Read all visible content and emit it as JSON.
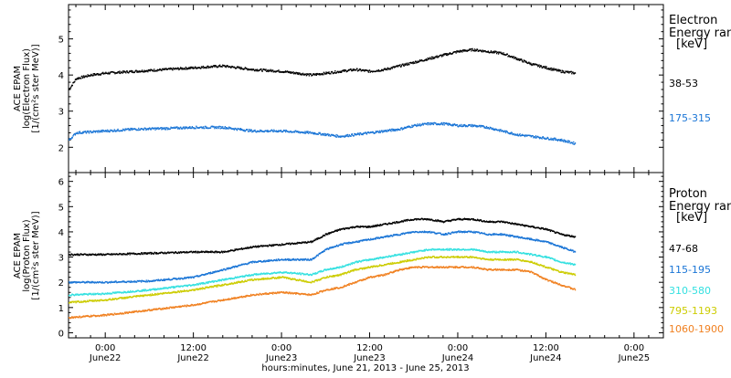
{
  "x_axis": {
    "label": "hours:minutes, June 21, 2013 - June 25, 2013",
    "ticks": [
      {
        "h": 24,
        "time": "0:00",
        "day": "June22"
      },
      {
        "h": 36,
        "time": "12:00",
        "day": "June22"
      },
      {
        "h": 48,
        "time": "0:00",
        "day": "June23"
      },
      {
        "h": 60,
        "time": "12:00",
        "day": "June23"
      },
      {
        "h": 72,
        "time": "0:00",
        "day": "June24"
      },
      {
        "h": 84,
        "time": "12:00",
        "day": "June24"
      },
      {
        "h": 96,
        "time": "0:00",
        "day": "June25"
      }
    ],
    "xlim": [
      19,
      100
    ]
  },
  "chart_data": [
    {
      "type": "scatter",
      "ylabel_lines": [
        "ACE EPAM",
        "log(Electron Flux)",
        "[1/(cm²s ster MeV)]"
      ],
      "ylim": [
        1.3,
        5.95
      ],
      "yticks": [
        2,
        3,
        4,
        5
      ],
      "legend_title": [
        "Electron",
        "Energy ran",
        "[keV]"
      ],
      "series": [
        {
          "name": "38-53",
          "color": "#000000",
          "x": [
            19,
            20,
            22,
            24,
            28,
            32,
            36,
            40,
            44,
            48,
            50,
            52,
            54,
            56,
            58,
            60,
            62,
            64,
            66,
            68,
            70,
            72,
            74,
            76,
            78,
            80,
            82,
            84,
            86,
            88
          ],
          "y": [
            3.6,
            3.9,
            4.0,
            4.05,
            4.1,
            4.15,
            4.2,
            4.25,
            4.15,
            4.1,
            4.05,
            4.0,
            4.05,
            4.1,
            4.15,
            4.1,
            4.15,
            4.25,
            4.35,
            4.45,
            4.55,
            4.65,
            4.7,
            4.65,
            4.6,
            4.45,
            4.3,
            4.2,
            4.1,
            4.05
          ]
        },
        {
          "name": "175-315",
          "color": "#1a75d6",
          "x": [
            19,
            20,
            24,
            28,
            32,
            36,
            40,
            44,
            48,
            52,
            54,
            56,
            58,
            60,
            62,
            64,
            66,
            68,
            70,
            72,
            74,
            76,
            78,
            80,
            82,
            84,
            86,
            88
          ],
          "y": [
            2.2,
            2.4,
            2.45,
            2.5,
            2.52,
            2.55,
            2.55,
            2.45,
            2.45,
            2.4,
            2.35,
            2.3,
            2.35,
            2.4,
            2.45,
            2.5,
            2.6,
            2.65,
            2.65,
            2.6,
            2.6,
            2.55,
            2.45,
            2.35,
            2.3,
            2.25,
            2.2,
            2.1
          ]
        }
      ]
    },
    {
      "type": "scatter",
      "ylabel_lines": [
        "ACE EPAM",
        "log(Proton Flux)",
        "[1/(cm²s ster MeV)]"
      ],
      "ylim": [
        -0.2,
        6.35
      ],
      "yticks": [
        0,
        1,
        2,
        3,
        4,
        5,
        6
      ],
      "legend_title": [
        "Proton",
        "Energy ran",
        "[keV]"
      ],
      "series": [
        {
          "name": "47-68",
          "color": "#000000",
          "x": [
            19,
            24,
            30,
            36,
            40,
            44,
            48,
            52,
            54,
            56,
            58,
            60,
            62,
            64,
            66,
            68,
            70,
            72,
            74,
            76,
            78,
            80,
            82,
            84,
            86,
            88
          ],
          "y": [
            3.1,
            3.1,
            3.15,
            3.2,
            3.2,
            3.4,
            3.5,
            3.6,
            3.9,
            4.1,
            4.2,
            4.2,
            4.3,
            4.4,
            4.5,
            4.5,
            4.4,
            4.5,
            4.5,
            4.4,
            4.4,
            4.3,
            4.2,
            4.1,
            3.9,
            3.8
          ]
        },
        {
          "name": "115-195",
          "color": "#1a75d6",
          "x": [
            19,
            24,
            30,
            36,
            40,
            44,
            48,
            52,
            54,
            56,
            58,
            60,
            62,
            64,
            66,
            68,
            70,
            72,
            74,
            76,
            78,
            80,
            82,
            84,
            86,
            88
          ],
          "y": [
            2.0,
            2.0,
            2.05,
            2.2,
            2.5,
            2.8,
            2.9,
            2.9,
            3.3,
            3.5,
            3.6,
            3.7,
            3.8,
            3.9,
            4.0,
            4.0,
            3.9,
            4.0,
            4.0,
            3.9,
            3.9,
            3.8,
            3.7,
            3.6,
            3.4,
            3.2
          ]
        },
        {
          "name": "310-580",
          "color": "#33e0e0",
          "x": [
            19,
            24,
            30,
            36,
            40,
            44,
            48,
            52,
            54,
            56,
            58,
            60,
            62,
            64,
            66,
            68,
            70,
            72,
            74,
            76,
            78,
            80,
            82,
            84,
            86,
            88
          ],
          "y": [
            1.5,
            1.55,
            1.7,
            1.9,
            2.1,
            2.3,
            2.4,
            2.3,
            2.5,
            2.6,
            2.8,
            2.9,
            3.0,
            3.1,
            3.2,
            3.3,
            3.3,
            3.3,
            3.3,
            3.2,
            3.2,
            3.2,
            3.1,
            3.0,
            2.8,
            2.7
          ]
        },
        {
          "name": "795-1193",
          "color": "#cccc00",
          "x": [
            19,
            24,
            30,
            36,
            40,
            44,
            48,
            52,
            54,
            56,
            58,
            60,
            62,
            64,
            66,
            68,
            70,
            72,
            74,
            76,
            78,
            80,
            82,
            84,
            86,
            88
          ],
          "y": [
            1.2,
            1.3,
            1.5,
            1.7,
            1.9,
            2.1,
            2.2,
            2.0,
            2.2,
            2.3,
            2.5,
            2.6,
            2.7,
            2.8,
            2.9,
            3.0,
            3.0,
            3.0,
            3.0,
            2.9,
            2.9,
            2.9,
            2.8,
            2.6,
            2.4,
            2.3
          ]
        },
        {
          "name": "1060-1900",
          "color": "#f08020",
          "x": [
            19,
            24,
            30,
            36,
            40,
            44,
            48,
            52,
            54,
            56,
            58,
            60,
            62,
            64,
            66,
            68,
            70,
            72,
            74,
            76,
            78,
            80,
            82,
            84,
            86,
            88
          ],
          "y": [
            0.6,
            0.7,
            0.9,
            1.1,
            1.3,
            1.5,
            1.6,
            1.5,
            1.7,
            1.8,
            2.0,
            2.2,
            2.3,
            2.5,
            2.6,
            2.6,
            2.6,
            2.6,
            2.6,
            2.5,
            2.5,
            2.5,
            2.4,
            2.1,
            1.9,
            1.7
          ]
        }
      ]
    }
  ]
}
